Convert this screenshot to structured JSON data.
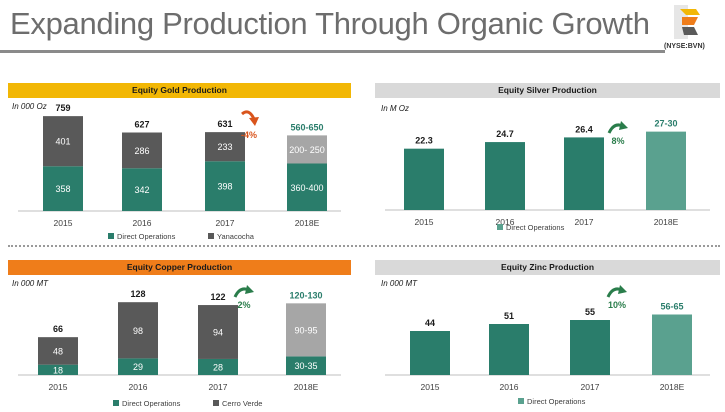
{
  "page": {
    "title": "Expanding Production Through Organic Growth",
    "ticker": "(NYSE:BVN)"
  },
  "colors": {
    "gold_header": "#f2b705",
    "silver_header": "#d9d9d9",
    "copper_header": "#ef7d1a",
    "zinc_header": "#d9d9d9",
    "teal": "#2a7d6b",
    "teal_light": "#5aa18f",
    "gray_dark": "#595959",
    "gray_light": "#a6a6a6",
    "growth_up": "#2a7d4b",
    "growth_down": "#d9541c"
  },
  "chart_data": [
    {
      "id": "gold",
      "type": "bar",
      "title": "Equity Gold Production",
      "unit_label": "In 000 Oz",
      "categories": [
        "2015",
        "2016",
        "2017",
        "2018E"
      ],
      "series": [
        {
          "name": "Direct Operations",
          "values": [
            358,
            342,
            398,
            380
          ]
        },
        {
          "name": "Yanacocha",
          "values": [
            401,
            286,
            233,
            225
          ]
        }
      ],
      "segment_labels": [
        [
          "358",
          "401"
        ],
        [
          "342",
          "286"
        ],
        [
          "398",
          "233"
        ],
        [
          "360-400",
          "200- 250"
        ]
      ],
      "totals": [
        "759",
        "627",
        "631",
        "560-650"
      ],
      "growth": {
        "label": "-4%",
        "direction": "down"
      },
      "ylim": [
        0,
        800
      ],
      "estimate_index": 3
    },
    {
      "id": "silver",
      "type": "bar",
      "title": "Equity Silver Production",
      "unit_label": "In M Oz",
      "categories": [
        "2015",
        "2016",
        "2017",
        "2018E"
      ],
      "series": [
        {
          "name": "Direct Operations",
          "values": [
            22.3,
            24.7,
            26.4,
            28.5
          ]
        }
      ],
      "segment_labels": [
        [
          ""
        ],
        [
          ""
        ],
        [
          ""
        ],
        [
          ""
        ]
      ],
      "totals": [
        "22.3",
        "24.7",
        "26.4",
        "27-30"
      ],
      "growth": {
        "label": "8%",
        "direction": "up"
      },
      "ylim": [
        0,
        40
      ],
      "estimate_index": 3
    },
    {
      "id": "copper",
      "type": "bar",
      "title": "Equity Copper Production",
      "unit_label": "In 000 MT",
      "categories": [
        "2015",
        "2016",
        "2017",
        "2018E"
      ],
      "series": [
        {
          "name": "Direct Operations",
          "values": [
            18,
            29,
            28,
            32.5
          ]
        },
        {
          "name": "Cerro Verde",
          "values": [
            48,
            98,
            94,
            92.5
          ]
        }
      ],
      "segment_labels": [
        [
          "18",
          "48"
        ],
        [
          "29",
          "98"
        ],
        [
          "28",
          "94"
        ],
        [
          "30-35",
          "90-95"
        ]
      ],
      "totals": [
        "66",
        "128",
        "122",
        "120-130"
      ],
      "growth": {
        "label": "2%",
        "direction": "up"
      },
      "ylim": [
        0,
        150
      ],
      "estimate_index": 3
    },
    {
      "id": "zinc",
      "type": "bar",
      "title": "Equity Zinc Production",
      "unit_label": "In 000 MT",
      "categories": [
        "2015",
        "2016",
        "2017",
        "2018E"
      ],
      "series": [
        {
          "name": "Direct Operations",
          "values": [
            44,
            51,
            55,
            60.5
          ]
        }
      ],
      "segment_labels": [
        [
          ""
        ],
        [
          ""
        ],
        [
          ""
        ],
        [
          ""
        ]
      ],
      "totals": [
        "44",
        "51",
        "55",
        "56-65"
      ],
      "growth": {
        "label": "10%",
        "direction": "up"
      },
      "ylim": [
        0,
        90
      ],
      "estimate_index": 3
    }
  ]
}
